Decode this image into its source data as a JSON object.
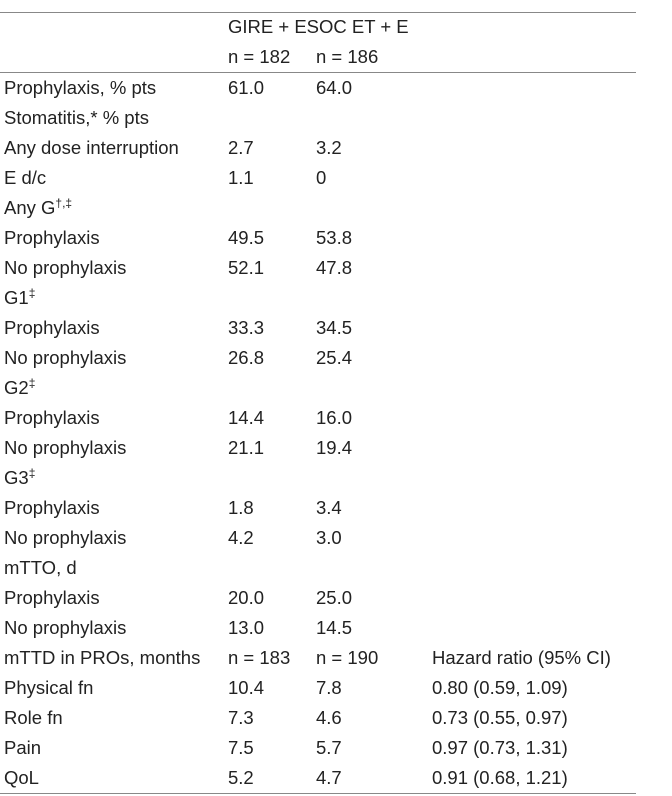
{
  "header": {
    "group_label": "GIRE + ESOC ET + E",
    "n_col1": "n = 182",
    "n_col2": "n = 186"
  },
  "rows": [
    {
      "label": "Prophylaxis, % pts",
      "sup": "",
      "v1": "61.0",
      "v2": "64.0",
      "v3": ""
    },
    {
      "label": "Stomatitis,* % pts",
      "sup": "",
      "v1": "",
      "v2": "",
      "v3": ""
    },
    {
      "label": "Any dose interruption",
      "sup": "",
      "v1": "2.7",
      "v2": "3.2",
      "v3": ""
    },
    {
      "label": "E d/c",
      "sup": "",
      "v1": "1.1",
      "v2": "0",
      "v3": ""
    },
    {
      "label": "Any G",
      "sup": "†,‡",
      "v1": "",
      "v2": "",
      "v3": ""
    },
    {
      "label": "Prophylaxis",
      "sup": "",
      "v1": "49.5",
      "v2": "53.8",
      "v3": ""
    },
    {
      "label": "No prophylaxis",
      "sup": "",
      "v1": "52.1",
      "v2": "47.8",
      "v3": ""
    },
    {
      "label": "G1",
      "sup": "‡",
      "v1": "",
      "v2": "",
      "v3": ""
    },
    {
      "label": "Prophylaxis",
      "sup": "",
      "v1": "33.3",
      "v2": "34.5",
      "v3": ""
    },
    {
      "label": "No prophylaxis",
      "sup": "",
      "v1": "26.8",
      "v2": "25.4",
      "v3": ""
    },
    {
      "label": "G2",
      "sup": "‡",
      "v1": "",
      "v2": "",
      "v3": ""
    },
    {
      "label": "Prophylaxis",
      "sup": "",
      "v1": "14.4",
      "v2": "16.0",
      "v3": ""
    },
    {
      "label": "No prophylaxis",
      "sup": "",
      "v1": "21.1",
      "v2": "19.4",
      "v3": ""
    },
    {
      "label": "G3",
      "sup": "‡",
      "v1": "",
      "v2": "",
      "v3": ""
    },
    {
      "label": "Prophylaxis",
      "sup": "",
      "v1": "1.8",
      "v2": "3.4",
      "v3": ""
    },
    {
      "label": "No prophylaxis",
      "sup": "",
      "v1": "4.2",
      "v2": "3.0",
      "v3": ""
    },
    {
      "label": "mTTO, d",
      "sup": "",
      "v1": "",
      "v2": "",
      "v3": ""
    },
    {
      "label": "Prophylaxis",
      "sup": "",
      "v1": "20.0",
      "v2": "25.0",
      "v3": ""
    },
    {
      "label": "No prophylaxis",
      "sup": "",
      "v1": "13.0",
      "v2": "14.5",
      "v3": ""
    },
    {
      "label": "mTTD in PROs, months",
      "sup": "",
      "v1": "n = 183",
      "v2": "n = 190",
      "v3": "Hazard ratio (95% CI)"
    },
    {
      "label": "Physical fn",
      "sup": "",
      "v1": "10.4",
      "v2": "7.8",
      "v3": "0.80 (0.59, 1.09)"
    },
    {
      "label": "Role fn",
      "sup": "",
      "v1": "7.3",
      "v2": "4.6",
      "v3": "0.73 (0.55, 0.97)"
    },
    {
      "label": "Pain",
      "sup": "",
      "v1": "7.5",
      "v2": "5.7",
      "v3": "0.97 (0.73, 1.31)"
    },
    {
      "label": "QoL",
      "sup": "",
      "v1": "5.2",
      "v2": "4.7",
      "v3": "0.91 (0.68, 1.21)"
    }
  ]
}
